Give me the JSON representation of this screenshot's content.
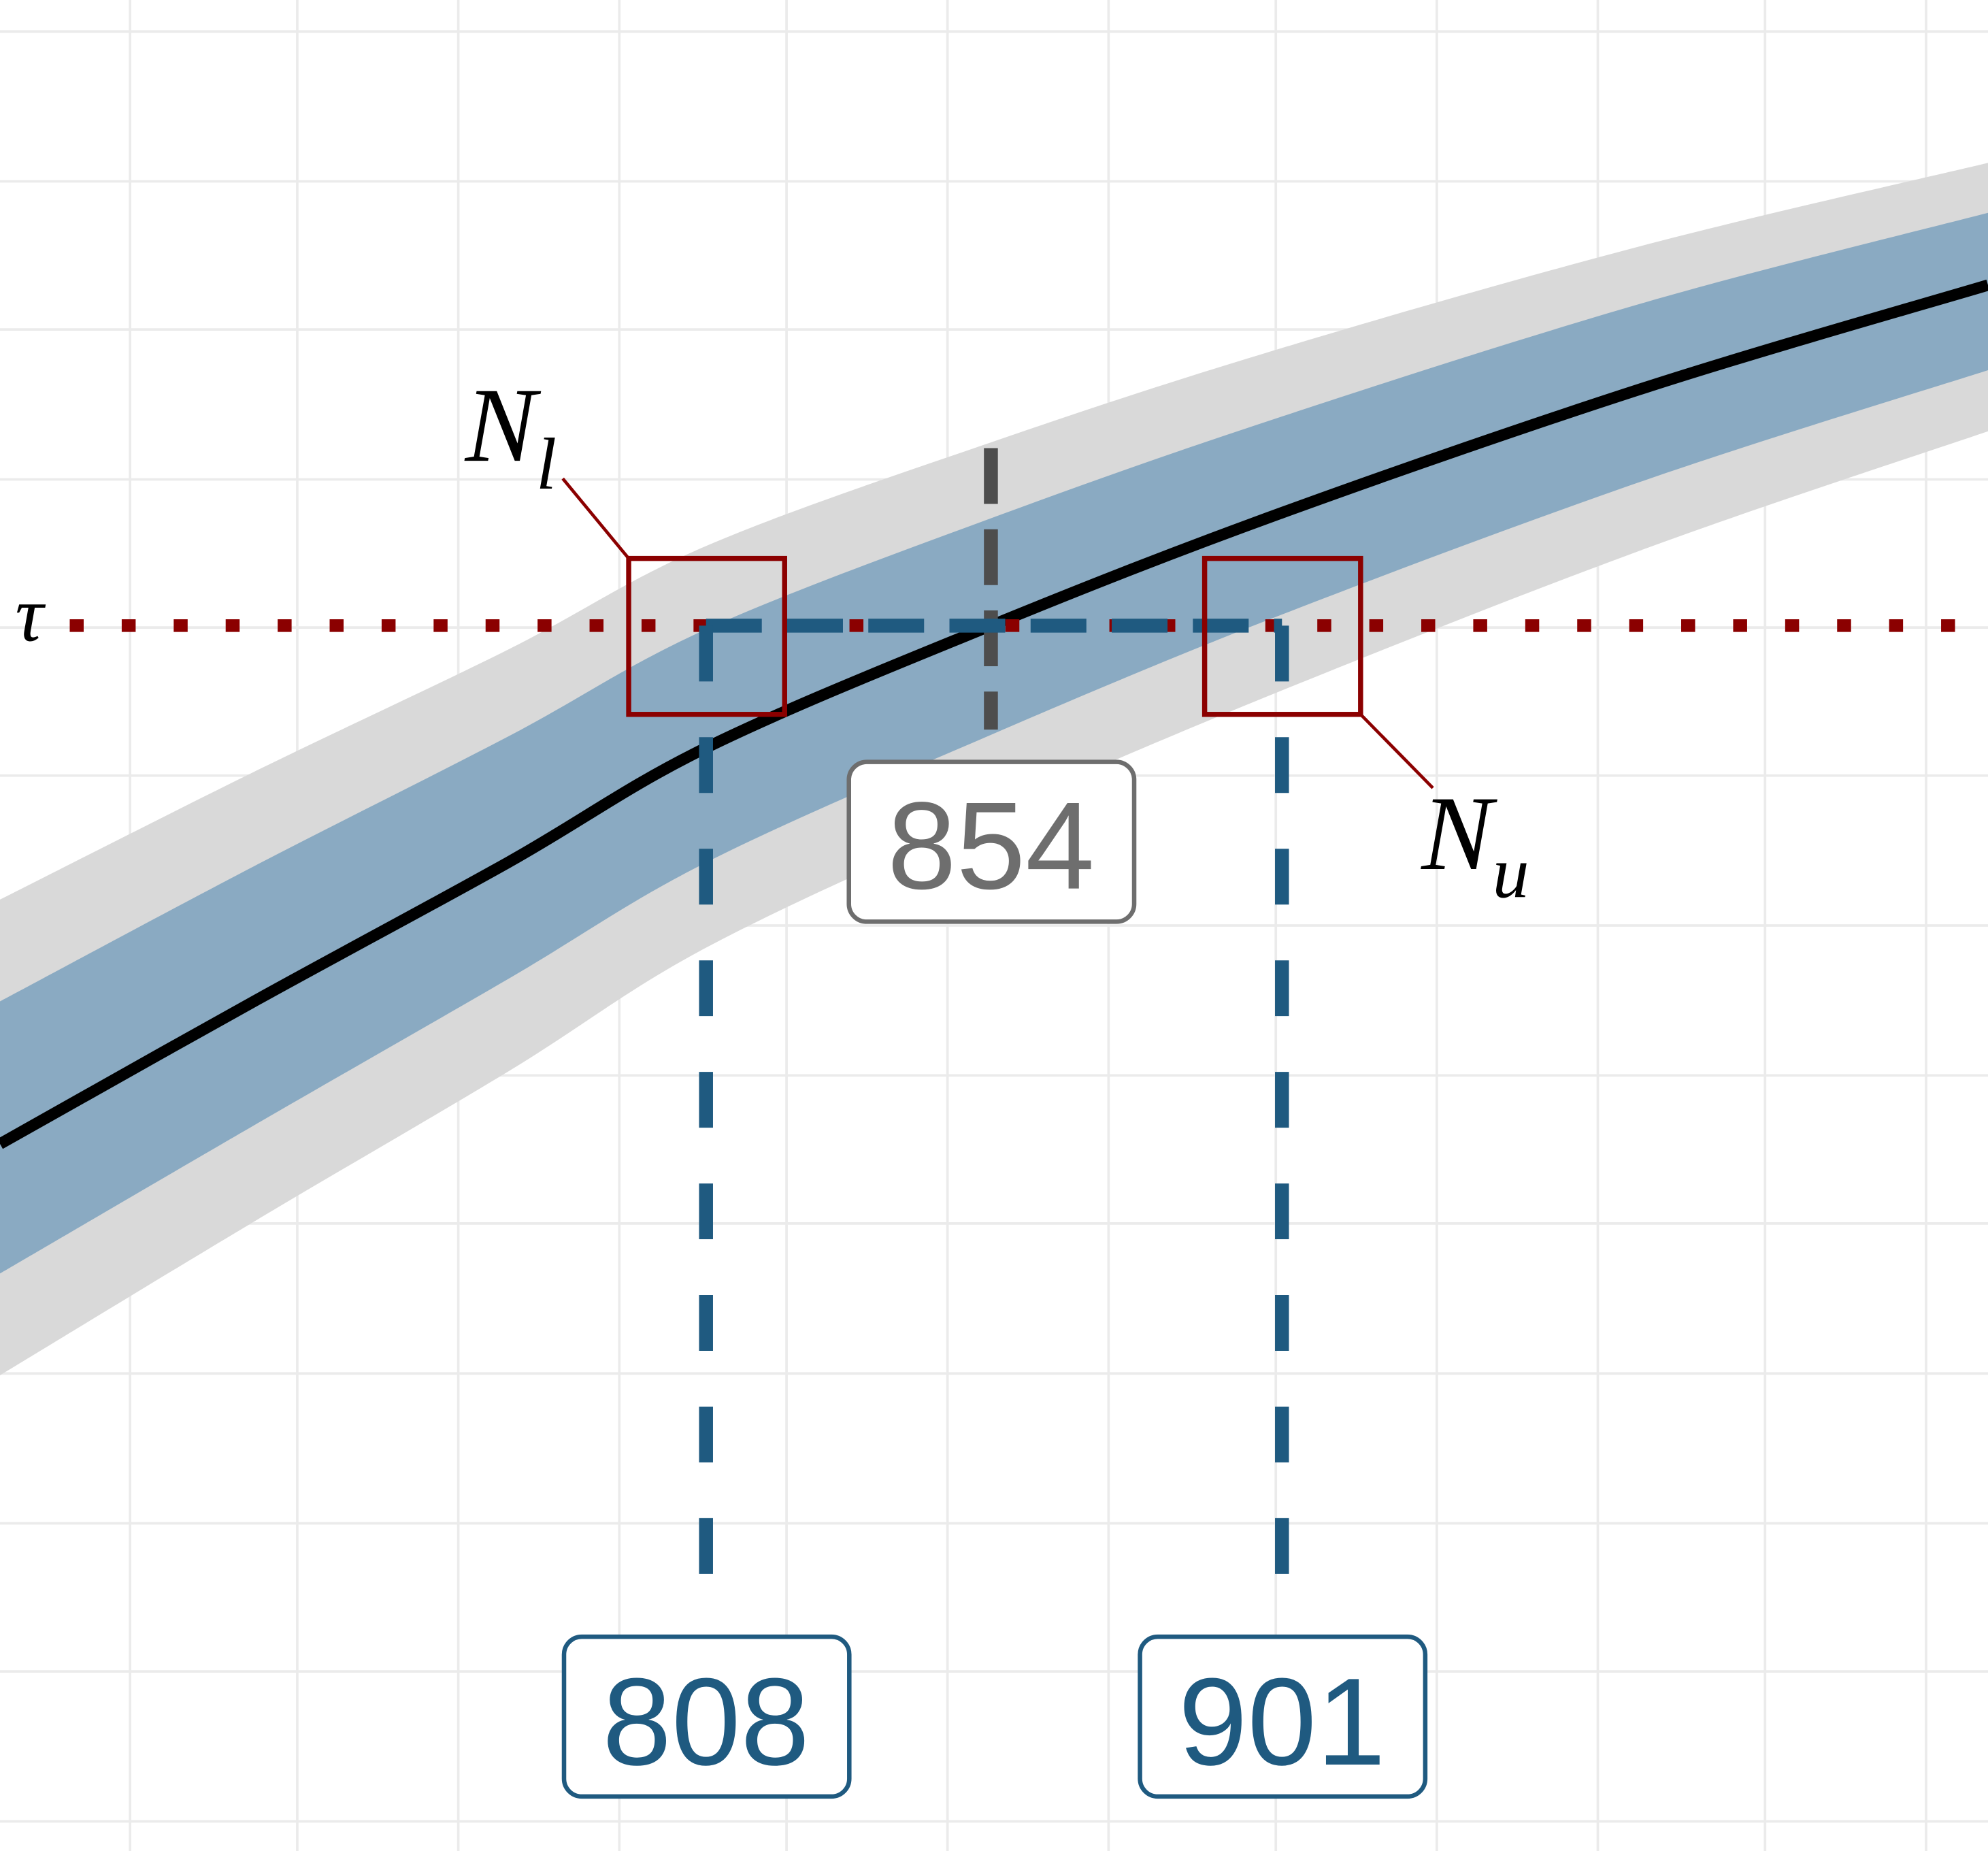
{
  "chart_data": {
    "type": "line",
    "x": [
      694,
      735,
      776,
      808,
      854,
      901,
      960,
      1015
    ],
    "xlim": [
      694,
      1015
    ],
    "ylim": [
      0,
      1
    ],
    "xticks": [
      715,
      742,
      768,
      794,
      821,
      847,
      873,
      900,
      926,
      952,
      979,
      1005
    ],
    "yticks": [
      0.983,
      0.902,
      0.822,
      0.741,
      0.661,
      0.581,
      0.5,
      0.419,
      0.339,
      0.258,
      0.177,
      0.097,
      0.016
    ],
    "grid": true,
    "bands": [
      {
        "color": "#d9d9d9",
        "upper": [
          0.514,
          0.583,
          0.649,
          0.705,
          0.761,
          0.812,
          0.868,
          0.912
        ],
        "lower": [
          0.257,
          0.34,
          0.421,
          0.488,
          0.56,
          0.627,
          0.704,
          0.767
        ]
      },
      {
        "color": "#8aaac2",
        "upper": [
          0.459,
          0.532,
          0.602,
          0.66,
          0.72,
          0.775,
          0.837,
          0.885
        ],
        "lower": [
          0.312,
          0.392,
          0.471,
          0.534,
          0.603,
          0.668,
          0.741,
          0.8
        ]
      }
    ],
    "line": {
      "color": "#000000",
      "values": [
        0.382,
        0.459,
        0.534,
        0.596,
        0.662,
        0.723,
        0.791,
        0.846
      ]
    },
    "threshold": {
      "label": "τ",
      "value": 0.662,
      "color": "#8b0000"
    },
    "estimate": {
      "value": 854,
      "color": "#4d4d4d",
      "label_color": "#6e6e6e"
    },
    "bounds": [
      {
        "symbol": "N",
        "subscript": "l",
        "value": 808
      },
      {
        "symbol": "N",
        "subscript": "u",
        "value": 901
      }
    ],
    "bounds_color": "#1f5a80",
    "box_color": "#8b0000"
  }
}
